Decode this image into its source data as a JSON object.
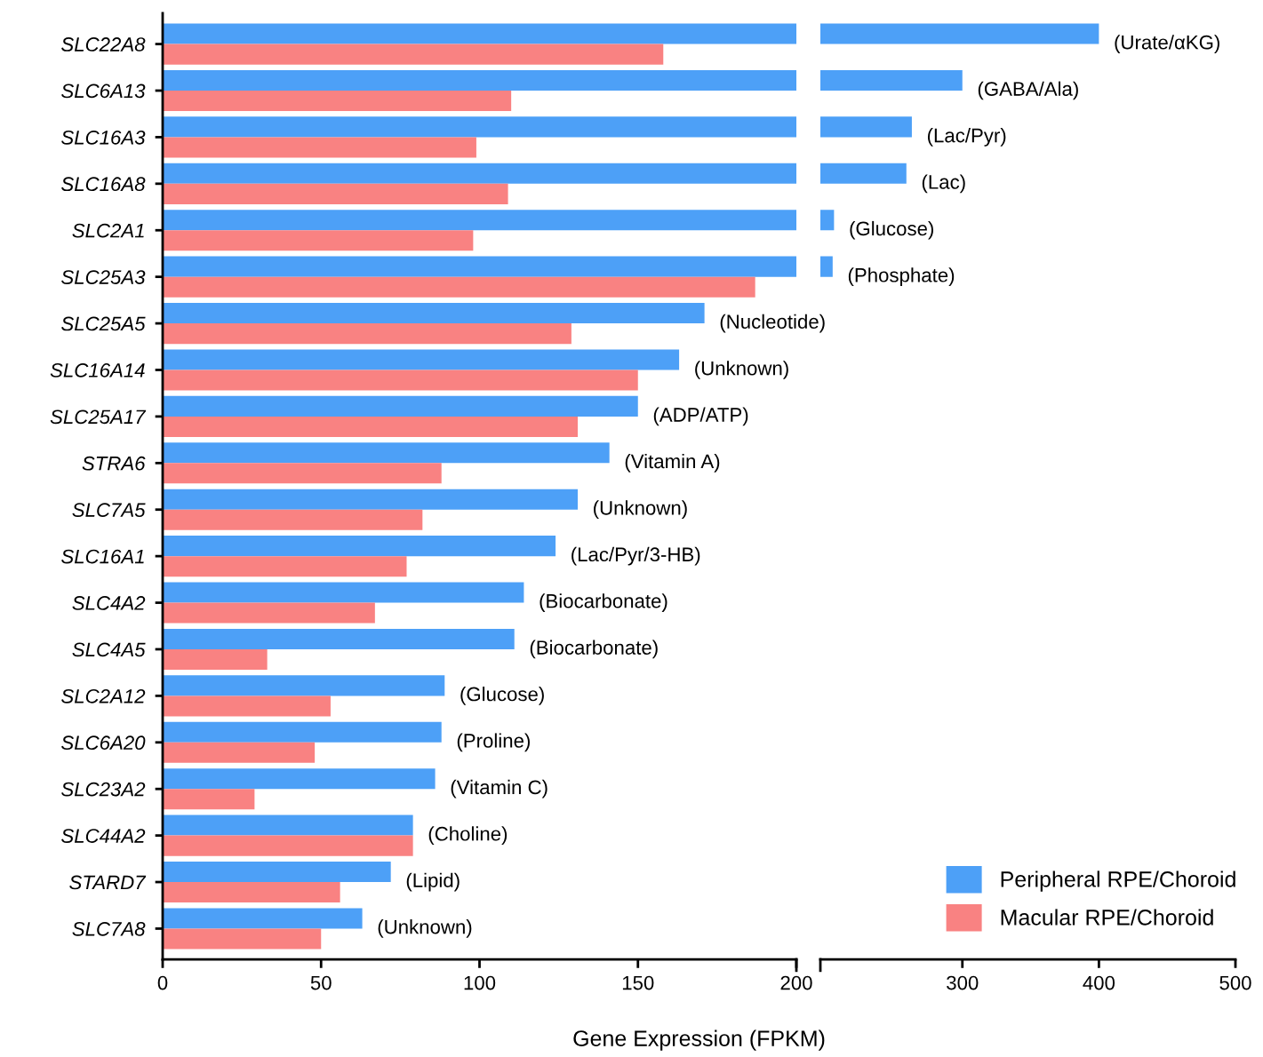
{
  "chart_data": [
    {
      "type": "bar",
      "orientation": "horizontal",
      "categories": [
        "SLC22A8",
        "SLC6A13",
        "SLC16A3",
        "SLC16A8",
        "SLC2A1",
        "SLC25A3",
        "SLC25A5",
        "SLC16A14",
        "SLC25A17",
        "STRA6",
        "SLC7A5",
        "SLC16A1",
        "SLC4A2",
        "SLC4A5",
        "SLC2A12",
        "SLC6A20",
        "SLC23A2",
        "SLC44A2",
        "STARD7",
        "SLC7A8"
      ],
      "series": [
        {
          "name": "Peripheral RPE/Choroid",
          "color": "#4da0f7",
          "values": [
            200,
            200,
            200,
            200,
            200,
            200,
            171,
            163,
            150,
            141,
            131,
            124,
            114,
            111,
            89,
            88,
            86,
            79,
            72,
            63
          ]
        },
        {
          "name": "Macular RPE/Choroid",
          "color": "#f98282",
          "values": [
            158,
            110,
            99,
            109,
            98,
            187,
            129,
            150,
            131,
            88,
            82,
            77,
            67,
            33,
            53,
            48,
            29,
            79,
            56,
            50
          ]
        }
      ],
      "xlim": [
        0,
        200
      ],
      "xticks": [
        0,
        50,
        100,
        150,
        200
      ],
      "xlabel": "Gene Expression (FPKM)",
      "grid": false,
      "legend": "bottom right",
      "annotations": [
        {
          "text": "(Nucleotide)",
          "x": 171,
          "y": "SLC25A5"
        },
        {
          "text": "(Unknown)",
          "x": 163,
          "y": "SLC16A14"
        },
        {
          "text": "(ADP/ATP)",
          "x": 150,
          "y": "SLC25A17"
        },
        {
          "text": "(Vitamin A)",
          "x": 141,
          "y": "STRA6"
        },
        {
          "text": "(Unknown)",
          "x": 131,
          "y": "SLC7A5"
        },
        {
          "text": "(Lac/Pyr/3-HB)",
          "x": 124,
          "y": "SLC16A1"
        },
        {
          "text": "(Biocarbonate)",
          "x": 114,
          "y": "SLC4A2"
        },
        {
          "text": "(Biocarbonate)",
          "x": 111,
          "y": "SLC4A5"
        },
        {
          "text": "(Glucose)",
          "x": 89,
          "y": "SLC2A12"
        },
        {
          "text": "(Proline)",
          "x": 88,
          "y": "SLC6A20"
        },
        {
          "text": "(Vitamin C)",
          "x": 86,
          "y": "SLC23A2"
        },
        {
          "text": "(Choline)",
          "x": 79,
          "y": "SLC44A2"
        },
        {
          "text": "(Lipid)",
          "x": 72,
          "y": "STARD7"
        },
        {
          "text": "(Unknown)",
          "x": 63,
          "y": "SLC7A8"
        }
      ]
    },
    {
      "type": "bar",
      "orientation": "horizontal",
      "categories": [
        "SLC22A8",
        "SLC6A13",
        "SLC16A3",
        "SLC16A8",
        "SLC2A1",
        "SLC25A3",
        "SLC25A5",
        "SLC16A14",
        "SLC25A17",
        "STRA6",
        "SLC7A5",
        "SLC16A1",
        "SLC4A2",
        "SLC4A5",
        "SLC2A12",
        "SLC6A20",
        "SLC23A2",
        "SLC44A2",
        "STARD7",
        "SLC7A8"
      ],
      "series": [
        {
          "color": "#4da0f7",
          "values": [
            400,
            300,
            263,
            259,
            206,
            205,
            null,
            null,
            null,
            null,
            null,
            null,
            null,
            null,
            null,
            null,
            null,
            null,
            null,
            null
          ]
        }
      ],
      "xlim": [
        196,
        500
      ],
      "xticks": [
        300,
        400,
        500
      ],
      "tick_labels": "x",
      "grid": false,
      "annotations": [
        {
          "text": "(Urate/αKG)",
          "x": 400,
          "y": "SLC22A8"
        },
        {
          "text": "(GABA/Ala)",
          "x": 300,
          "y": "SLC6A13"
        },
        {
          "text": "(Lac/Pyr)",
          "x": 263,
          "y": "SLC16A3"
        },
        {
          "text": "(Lac)",
          "x": 259,
          "y": "SLC16A8"
        },
        {
          "text": "(Glucose)",
          "x": 206,
          "y": "SLC2A1"
        },
        {
          "text": "(Phosphate)",
          "x": 205,
          "y": "SLC25A3"
        }
      ]
    }
  ]
}
